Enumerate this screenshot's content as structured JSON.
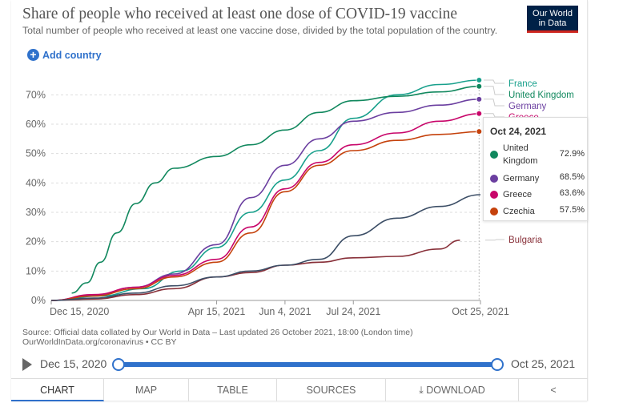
{
  "header": {
    "title": "Share of people who received at least one dose of COVID-19 vaccine",
    "subtitle": "Total number of people who received at least one vaccine dose, divided by the total population of the country.",
    "logo_line1": "Our World",
    "logo_line2": "in Data",
    "add_country": "Add country"
  },
  "chart_data": {
    "type": "line",
    "title": "Share of people who received at least one dose of COVID-19 vaccine",
    "ylim": [
      0,
      75
    ],
    "y_ticks": [
      "0%",
      "10%",
      "20%",
      "30%",
      "40%",
      "50%",
      "60%",
      "70%"
    ],
    "x_ticks": [
      "Dec 15, 2020",
      "Apr 15, 2021",
      "Jun 4, 2021",
      "Jul 24, 2021",
      "Oct 25, 2021"
    ],
    "grid": true,
    "legend": "right-end labels",
    "series": [
      {
        "name": "France",
        "color": "#18a08c",
        "x": [
          "2020-12-15",
          "2021-01-20",
          "2021-02-20",
          "2021-03-20",
          "2021-04-15",
          "2021-05-10",
          "2021-06-04",
          "2021-06-29",
          "2021-07-24",
          "2021-08-25",
          "2021-09-25",
          "2021-10-25"
        ],
        "y": [
          0,
          1.5,
          4,
          10,
          18,
          30,
          41,
          51,
          62,
          70,
          73.5,
          75
        ]
      },
      {
        "name": "United Kingdom",
        "color": "#11885e",
        "x": [
          "2020-12-15",
          "2020-12-30",
          "2021-01-10",
          "2021-01-20",
          "2021-02-01",
          "2021-02-15",
          "2021-03-01",
          "2021-03-15",
          "2021-04-15",
          "2021-05-10",
          "2021-06-04",
          "2021-06-29",
          "2021-07-24",
          "2021-08-25",
          "2021-09-25",
          "2021-10-25"
        ],
        "y": [
          0.5,
          2.5,
          6,
          13,
          23,
          33,
          40,
          45,
          49,
          53,
          58,
          64,
          68,
          69.5,
          71,
          72.9
        ]
      },
      {
        "name": "Germany",
        "color": "#6b3fa0",
        "x": [
          "2020-12-15",
          "2021-01-15",
          "2021-02-15",
          "2021-03-15",
          "2021-04-15",
          "2021-05-10",
          "2021-06-04",
          "2021-06-29",
          "2021-07-24",
          "2021-08-25",
          "2021-09-25",
          "2021-10-25"
        ],
        "y": [
          0,
          1.8,
          4.5,
          9,
          19,
          35,
          46,
          55,
          61,
          64,
          66.5,
          68.5
        ]
      },
      {
        "name": "Greece",
        "color": "#c8066a",
        "x": [
          "2020-12-15",
          "2021-01-15",
          "2021-02-15",
          "2021-03-15",
          "2021-04-15",
          "2021-05-10",
          "2021-06-04",
          "2021-06-29",
          "2021-07-24",
          "2021-08-25",
          "2021-09-25",
          "2021-10-25"
        ],
        "y": [
          0,
          2,
          4.5,
          8.5,
          14,
          25,
          38,
          47,
          53,
          57,
          61,
          63.6
        ]
      },
      {
        "name": "Czechia",
        "color": "#c5420c",
        "x": [
          "2020-12-15",
          "2021-01-15",
          "2021-02-15",
          "2021-03-15",
          "2021-04-15",
          "2021-05-10",
          "2021-06-04",
          "2021-06-29",
          "2021-07-24",
          "2021-08-25",
          "2021-09-25",
          "2021-10-25"
        ],
        "y": [
          0,
          1.5,
          4,
          8,
          13,
          23,
          37,
          46,
          51,
          54.5,
          56.5,
          57.5
        ]
      },
      {
        "name": "Bulgaria",
        "color": "#883039",
        "x": [
          "2020-12-15",
          "2021-01-15",
          "2021-02-15",
          "2021-03-15",
          "2021-04-15",
          "2021-05-10",
          "2021-06-04",
          "2021-06-29",
          "2021-07-24",
          "2021-08-25",
          "2021-09-25",
          "2021-10-10"
        ],
        "y": [
          0,
          0.5,
          2,
          4,
          8,
          9.5,
          12,
          13,
          14.5,
          15,
          17.5,
          20.5
        ]
      },
      {
        "name": "",
        "color": "#3c4e66",
        "x": [
          "2020-12-15",
          "2021-01-15",
          "2021-02-15",
          "2021-03-15",
          "2021-04-15",
          "2021-05-10",
          "2021-06-04",
          "2021-06-29",
          "2021-07-24",
          "2021-08-25",
          "2021-09-25",
          "2021-10-25"
        ],
        "y": [
          0,
          0.8,
          2.5,
          5,
          8,
          10,
          12,
          14,
          22,
          28,
          32,
          36
        ]
      }
    ],
    "end_labels": [
      {
        "name": "France",
        "color": "#18a08c"
      },
      {
        "name": "United Kingdom",
        "color": "#11885e"
      },
      {
        "name": "Germany",
        "color": "#6b3fa0"
      },
      {
        "name": "Greece",
        "color": "#c8066a"
      },
      {
        "name": "Bulgaria",
        "color": "#883039"
      }
    ]
  },
  "tooltip": {
    "date": "Oct 24, 2021",
    "rows": [
      {
        "name": "United Kingdom",
        "value": "72.9%",
        "color": "#11885e"
      },
      {
        "name": "Germany",
        "value": "68.5%",
        "color": "#6b3fa0"
      },
      {
        "name": "Greece",
        "value": "63.6%",
        "color": "#c8066a"
      },
      {
        "name": "Czechia",
        "value": "57.5%",
        "color": "#c5420c"
      }
    ]
  },
  "source": {
    "line1": "Source: Official data collated by Our World in Data – Last updated 26 October 2021, 18:00 (London time)",
    "line2": "OurWorldInData.org/coronavirus • CC BY"
  },
  "timeline": {
    "start": "Dec 15, 2020",
    "end": "Oct 25, 2021"
  },
  "tabs": [
    "CHART",
    "MAP",
    "TABLE",
    "SOURCES",
    "DOWNLOAD",
    ""
  ]
}
